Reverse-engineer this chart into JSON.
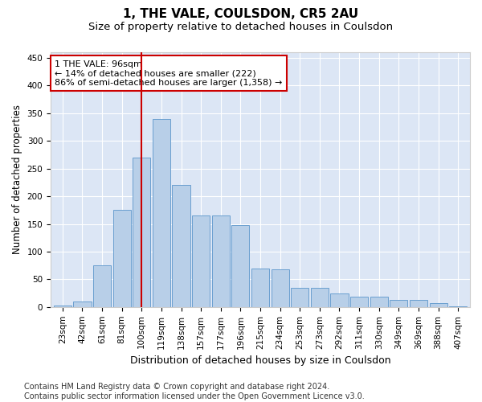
{
  "title": "1, THE VALE, COULSDON, CR5 2AU",
  "subtitle": "Size of property relative to detached houses in Coulsdon",
  "xlabel": "Distribution of detached houses by size in Coulsdon",
  "ylabel": "Number of detached properties",
  "categories": [
    "23sqm",
    "42sqm",
    "61sqm",
    "81sqm",
    "100sqm",
    "119sqm",
    "138sqm",
    "157sqm",
    "177sqm",
    "196sqm",
    "215sqm",
    "234sqm",
    "253sqm",
    "273sqm",
    "292sqm",
    "311sqm",
    "330sqm",
    "349sqm",
    "369sqm",
    "388sqm",
    "407sqm"
  ],
  "values": [
    2,
    10,
    75,
    175,
    270,
    340,
    220,
    165,
    165,
    148,
    70,
    68,
    35,
    35,
    25,
    18,
    18,
    13,
    13,
    7,
    1
  ],
  "bar_color": "#b8cfe8",
  "bar_edge_color": "#6a9fd0",
  "background_color": "#dce6f5",
  "vline_x": 4,
  "vline_color": "#cc0000",
  "annotation_text": "1 THE VALE: 96sqm\n← 14% of detached houses are smaller (222)\n86% of semi-detached houses are larger (1,358) →",
  "annotation_box_color": "#ffffff",
  "annotation_box_edge_color": "#cc0000",
  "ylim": [
    0,
    460
  ],
  "yticks": [
    0,
    50,
    100,
    150,
    200,
    250,
    300,
    350,
    400,
    450
  ],
  "footer": "Contains HM Land Registry data © Crown copyright and database right 2024.\nContains public sector information licensed under the Open Government Licence v3.0.",
  "title_fontsize": 11,
  "subtitle_fontsize": 9.5,
  "xlabel_fontsize": 9,
  "ylabel_fontsize": 8.5,
  "tick_fontsize": 7.5,
  "annotation_fontsize": 8,
  "footer_fontsize": 7
}
